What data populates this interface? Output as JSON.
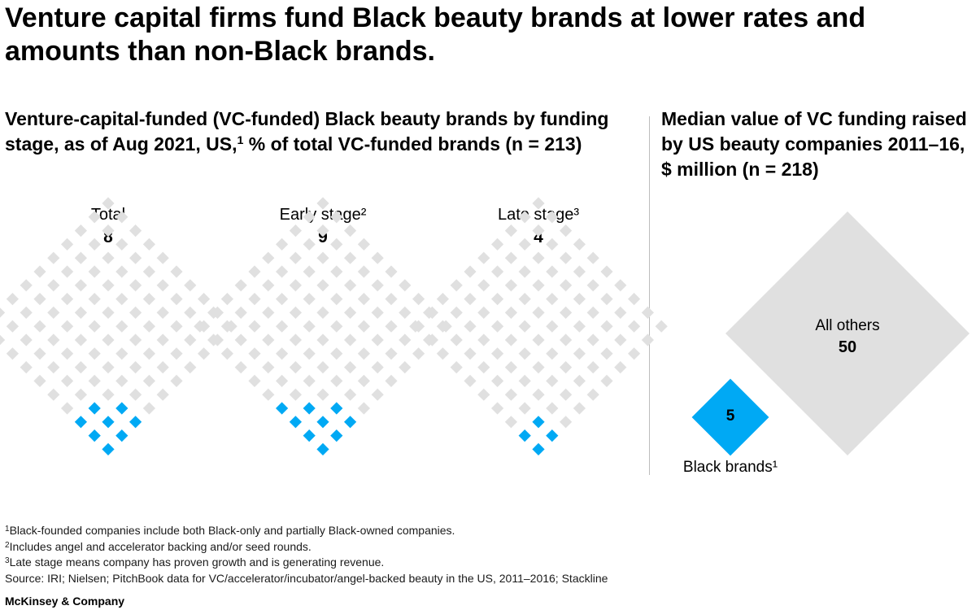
{
  "headline": "Venture capital firms fund Black beauty brands at lower rates and amounts than non-Black brands.",
  "left_panel": {
    "subtitle_pre": "Venture-capital-funded (VC-funded) Black beauty brands by funding stage, as of Aug 2021, US,",
    "subtitle_sup": "1",
    "subtitle_post": " % of total VC-funded brands (n = 213)"
  },
  "right_panel": {
    "subtitle": "Median value of VC funding raised by US beauty companies 2011–16, $ million (n = 218)"
  },
  "colors": {
    "highlight": "#00a9f4",
    "base": "#e0e0e0"
  },
  "chart_data": [
    {
      "type": "waffle",
      "grid_total": 100,
      "panels": [
        {
          "label": "Total",
          "value": 8
        },
        {
          "label": "Early stage²",
          "value": 9
        },
        {
          "label": "Late stage³",
          "value": 4
        }
      ]
    },
    {
      "type": "area-comparison",
      "items": [
        {
          "label": "Black brands¹",
          "value": 5
        },
        {
          "label": "All others",
          "value": 50
        }
      ]
    }
  ],
  "footnotes": [
    {
      "mark": "1",
      "text": "Black-founded companies include both Black-only and partially Black-owned companies."
    },
    {
      "mark": "2",
      "text": "Includes angel and accelerator backing and/or seed rounds."
    },
    {
      "mark": "3",
      "text": "Late stage means company has proven growth and is generating revenue."
    }
  ],
  "source": "Source: IRI; Nielsen; PitchBook data for VC/accelerator/incubator/angel-backed beauty in the US, 2011–2016; Stackline",
  "brand": "McKinsey & Company"
}
